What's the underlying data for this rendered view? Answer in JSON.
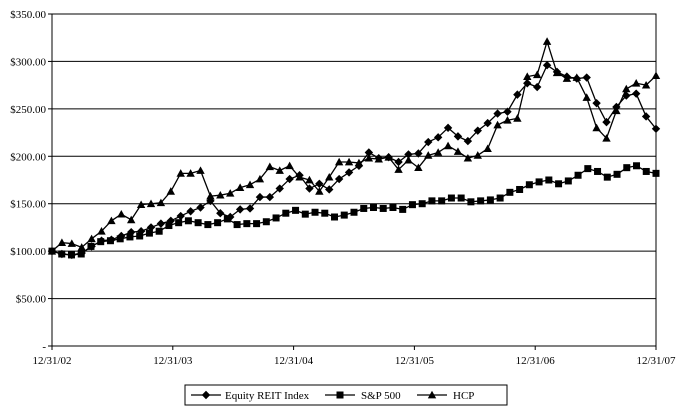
{
  "chart_data": {
    "type": "line",
    "title": "",
    "xlabel": "",
    "ylabel": "",
    "ylim": [
      0,
      350
    ],
    "xlim": [
      0,
      60
    ],
    "grid": "horizontal",
    "legend_position": "bottom",
    "y_ticks": [
      {
        "value": 0,
        "label": "-"
      },
      {
        "value": 50,
        "label": "$50.00"
      },
      {
        "value": 100,
        "label": "$100.00"
      },
      {
        "value": 150,
        "label": "$150.00"
      },
      {
        "value": 200,
        "label": "$200.00"
      },
      {
        "value": 250,
        "label": "$250.00"
      },
      {
        "value": 300,
        "label": "$300.00"
      },
      {
        "value": 350,
        "label": "$350.00"
      }
    ],
    "x_ticks": [
      {
        "value": 0,
        "label": "12/31/02"
      },
      {
        "value": 12,
        "label": "12/31/03"
      },
      {
        "value": 24,
        "label": "12/31/04"
      },
      {
        "value": 36,
        "label": "12/31/05"
      },
      {
        "value": 48,
        "label": "12/31/06"
      },
      {
        "value": 60,
        "label": "12/31/07"
      }
    ],
    "series": [
      {
        "name": "Equity REIT Index",
        "marker": "diamond",
        "color": "#000000",
        "values": [
          100,
          97,
          96,
          98,
          105,
          111,
          112,
          116,
          120,
          121,
          125,
          129,
          132,
          137,
          142,
          146,
          153,
          140,
          136,
          144,
          145,
          157,
          157,
          166,
          176,
          180,
          166,
          171,
          165,
          176,
          183,
          190,
          204,
          198,
          199,
          194,
          202,
          203,
          215,
          220,
          230,
          221,
          216,
          227,
          235,
          245,
          247,
          265,
          277,
          273,
          296,
          289,
          284,
          282,
          283,
          256,
          236,
          252,
          264,
          266,
          242,
          229
        ]
      },
      {
        "name": "S&P 500",
        "marker": "square",
        "color": "#000000",
        "values": [
          100,
          97,
          96,
          97,
          105,
          110,
          111,
          113,
          115,
          116,
          119,
          121,
          127,
          130,
          132,
          130,
          128,
          130,
          134,
          128,
          129,
          129,
          131,
          135,
          140,
          143,
          139,
          141,
          140,
          136,
          138,
          141,
          145,
          146,
          145,
          146,
          144,
          149,
          150,
          153,
          153,
          156,
          156,
          152,
          153,
          154,
          156,
          162,
          165,
          170,
          173,
          175,
          171,
          174,
          180,
          187,
          184,
          178,
          181,
          188,
          190,
          184,
          182
        ]
      },
      {
        "name": "HCP",
        "marker": "triangle",
        "color": "#000000",
        "values": [
          100,
          109,
          108,
          104,
          113,
          121,
          132,
          139,
          133,
          149,
          150,
          151,
          163,
          182,
          182,
          185,
          158,
          159,
          161,
          167,
          170,
          176,
          189,
          185,
          190,
          178,
          175,
          163,
          178,
          194,
          194,
          193,
          198,
          197,
          199,
          186,
          196,
          188,
          201,
          204,
          211,
          205,
          198,
          201,
          208,
          233,
          238,
          240,
          284,
          286,
          321,
          288,
          282,
          283,
          262,
          230,
          219,
          248,
          271,
          277,
          275,
          285
        ]
      }
    ]
  },
  "legend": {
    "items": [
      {
        "label": "Equity REIT Index",
        "marker": "diamond"
      },
      {
        "label": "S&P 500",
        "marker": "square"
      },
      {
        "label": "HCP",
        "marker": "triangle"
      }
    ]
  }
}
